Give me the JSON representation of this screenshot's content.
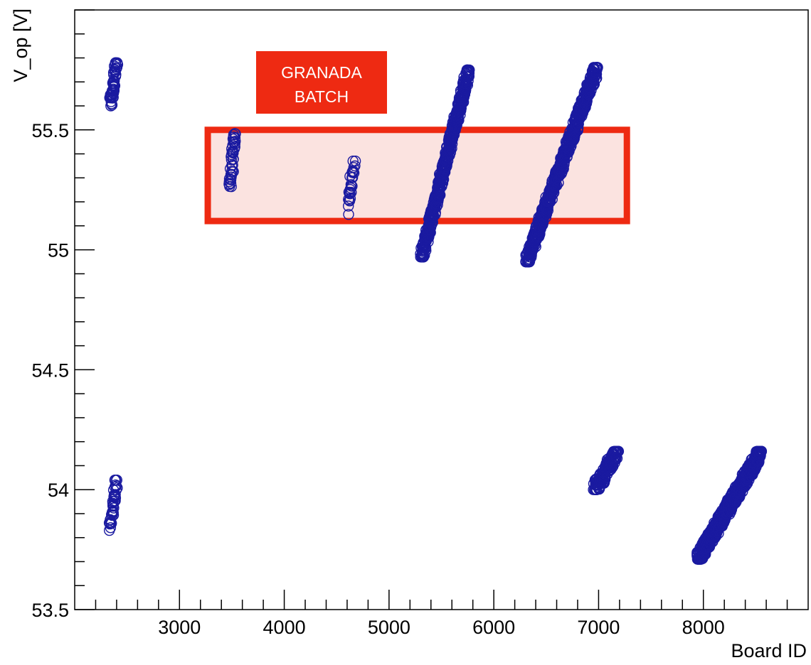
{
  "chart_data": {
    "type": "scatter",
    "xlabel": "Board ID",
    "ylabel": "V_op [V]",
    "xlim": [
      2000,
      9000
    ],
    "ylim": [
      53.5,
      56.0
    ],
    "x_ticks": [
      3000,
      4000,
      5000,
      6000,
      7000,
      8000
    ],
    "y_ticks": [
      53.5,
      54,
      54.5,
      55,
      55.5
    ],
    "y_tick_labels": [
      "53.5",
      "54",
      "54.5",
      "55",
      "55.5"
    ],
    "grid": false,
    "marker": "open-circle",
    "marker_color": "#1a1aa0",
    "clusters": [
      {
        "x_range": [
          2340,
          2400
        ],
        "y_range": [
          55.6,
          55.78
        ],
        "count": 50
      },
      {
        "x_range": [
          2340,
          2400
        ],
        "y_range": [
          53.83,
          54.04
        ],
        "count": 40
      },
      {
        "x_range": [
          3480,
          3530
        ],
        "y_range": [
          55.26,
          55.49
        ],
        "count": 45
      },
      {
        "x_range": [
          4620,
          4670
        ],
        "y_range": [
          55.21,
          55.37
        ],
        "count": 25
      },
      {
        "x_range": [
          4600,
          4620
        ],
        "y_range": [
          55.13,
          55.26
        ],
        "count": 5
      },
      {
        "x_range": [
          5310,
          5760
        ],
        "y_range": [
          54.97,
          55.75
        ],
        "count": 500
      },
      {
        "x_range": [
          6310,
          6980
        ],
        "y_range": [
          54.95,
          55.76
        ],
        "count": 700
      },
      {
        "x_range": [
          6960,
          7180
        ],
        "y_range": [
          54.0,
          54.16
        ],
        "count": 150
      },
      {
        "x_range": [
          7950,
          8550
        ],
        "y_range": [
          53.71,
          54.16
        ],
        "count": 700
      }
    ],
    "annotation": {
      "label": [
        "GRANADA",
        "BATCH"
      ],
      "highlight_x": [
        3270,
        7270
      ],
      "highlight_y": [
        55.12,
        55.5
      ],
      "color": "#ee2a12",
      "fill": "#fbe3e0"
    }
  }
}
